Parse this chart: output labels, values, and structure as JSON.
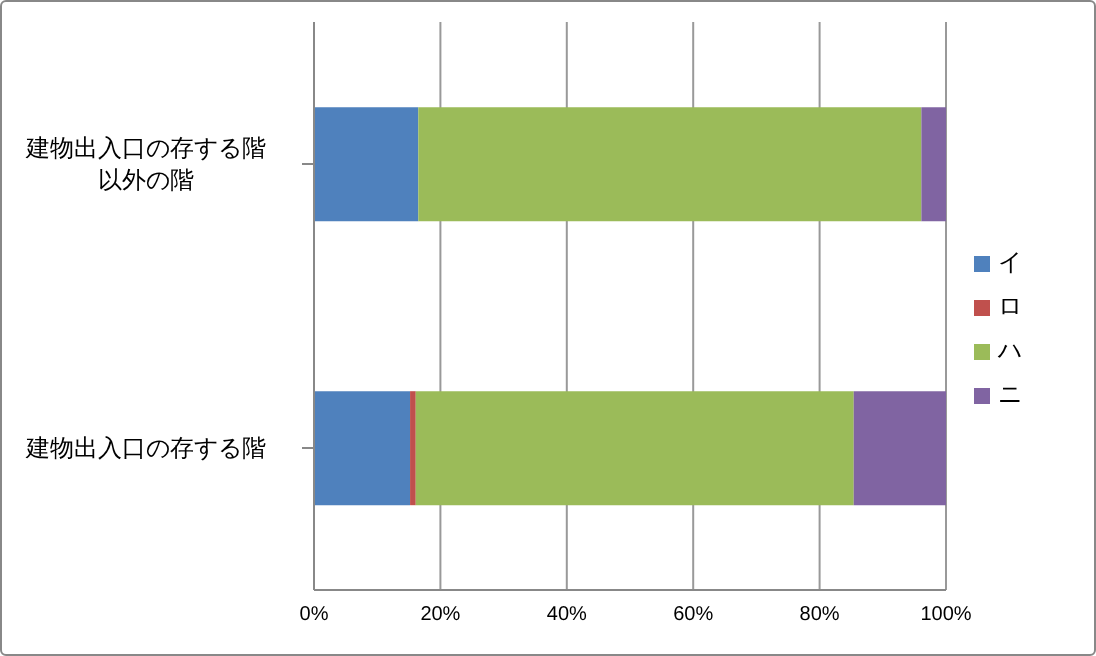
{
  "chart_data": {
    "type": "bar",
    "orientation": "horizontal",
    "stacked": true,
    "categories": [
      "建物出入口の存する階以外の階",
      "建物出入口の存する階"
    ],
    "series": [
      {
        "name": "イ",
        "color": "#4f81bd",
        "values": [
          16.5,
          15.2
        ]
      },
      {
        "name": "ロ",
        "color": "#c0504d",
        "values": [
          0,
          0.9
        ]
      },
      {
        "name": "ハ",
        "color": "#9bbb59",
        "values": [
          79.6,
          69.3
        ]
      },
      {
        "name": "ニ",
        "color": "#8064a2",
        "values": [
          3.9,
          14.6
        ]
      }
    ],
    "xlim": [
      0,
      100
    ],
    "xticks": [
      {
        "value": 0,
        "label": "0%"
      },
      {
        "value": 20,
        "label": "20%"
      },
      {
        "value": 40,
        "label": "40%"
      },
      {
        "value": 60,
        "label": "60%"
      },
      {
        "value": 80,
        "label": "80%"
      },
      {
        "value": 100,
        "label": "100%"
      }
    ],
    "grid": "x",
    "legend": "right"
  }
}
